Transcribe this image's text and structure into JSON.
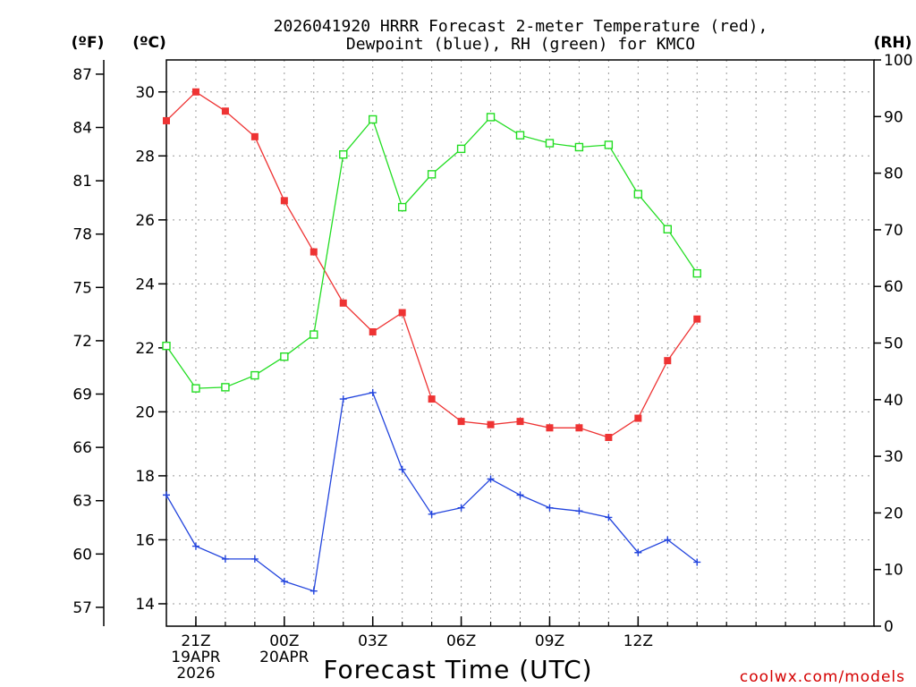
{
  "chart_data": {
    "type": "line",
    "title_line1": "2026041920 HRRR Forecast 2-meter Temperature (red),",
    "title_line2": "Dewpoint (blue), RH (green) for KMCO",
    "xlabel": "Forecast Time (UTC)",
    "credit": "coolwx.com/models",
    "units": {
      "fahrenheit": "(ºF)",
      "celsius": "(ºC)",
      "rh": "(RH)"
    },
    "x_hours_range": [
      20,
      44
    ],
    "celsius_range": [
      13.3,
      31.0
    ],
    "rh_range": [
      0,
      100
    ],
    "celsius_ticks": [
      {
        "value": 14,
        "label": "14"
      },
      {
        "value": 16,
        "label": "16"
      },
      {
        "value": 18,
        "label": "18"
      },
      {
        "value": 20,
        "label": "20"
      },
      {
        "value": 22,
        "label": "22"
      },
      {
        "value": 24,
        "label": "24"
      },
      {
        "value": 26,
        "label": "26"
      },
      {
        "value": 28,
        "label": "28"
      },
      {
        "value": 30,
        "label": "30"
      }
    ],
    "fahrenheit_ticks": [
      {
        "value": 57,
        "label": "57"
      },
      {
        "value": 60,
        "label": "60"
      },
      {
        "value": 63,
        "label": "63"
      },
      {
        "value": 66,
        "label": "66"
      },
      {
        "value": 69,
        "label": "69"
      },
      {
        "value": 72,
        "label": "72"
      },
      {
        "value": 75,
        "label": "75"
      },
      {
        "value": 78,
        "label": "78"
      },
      {
        "value": 81,
        "label": "81"
      },
      {
        "value": 84,
        "label": "84"
      },
      {
        "value": 87,
        "label": "87"
      }
    ],
    "rh_ticks": [
      {
        "value": 0,
        "label": "0"
      },
      {
        "value": 10,
        "label": "10"
      },
      {
        "value": 20,
        "label": "20"
      },
      {
        "value": 30,
        "label": "30"
      },
      {
        "value": 40,
        "label": "40"
      },
      {
        "value": 50,
        "label": "50"
      },
      {
        "value": 60,
        "label": "60"
      },
      {
        "value": 70,
        "label": "70"
      },
      {
        "value": 80,
        "label": "80"
      },
      {
        "value": 90,
        "label": "90"
      },
      {
        "value": 100,
        "label": "100"
      }
    ],
    "x_ticks": [
      {
        "hour": 21,
        "lines": [
          "21Z",
          "19APR",
          "2026"
        ]
      },
      {
        "hour": 24,
        "lines": [
          "00Z",
          "20APR"
        ]
      },
      {
        "hour": 27,
        "lines": [
          "03Z"
        ]
      },
      {
        "hour": 30,
        "lines": [
          "06Z"
        ]
      },
      {
        "hour": 33,
        "lines": [
          "09Z"
        ]
      },
      {
        "hour": 36,
        "lines": [
          "12Z"
        ]
      }
    ],
    "x": [
      20,
      21,
      22,
      23,
      24,
      25,
      26,
      27,
      28,
      29,
      30,
      31,
      32,
      33,
      34,
      35,
      36,
      37,
      38
    ],
    "series": [
      {
        "name": "Temperature",
        "color": "#ee3333",
        "marker": "filled-square",
        "axis": "celsius",
        "values": [
          29.1,
          30.0,
          29.4,
          28.6,
          26.6,
          25.0,
          23.4,
          22.5,
          23.1,
          20.4,
          19.7,
          19.6,
          19.7,
          19.5,
          19.5,
          19.2,
          19.8,
          21.6,
          22.9
        ]
      },
      {
        "name": "Dewpoint",
        "color": "#2244dd",
        "marker": "plus",
        "axis": "celsius",
        "values": [
          17.4,
          15.8,
          15.4,
          15.4,
          14.7,
          14.4,
          20.4,
          20.6,
          18.2,
          16.8,
          17.0,
          17.9,
          17.4,
          17.0,
          16.9,
          16.7,
          15.6,
          16.0,
          15.3
        ]
      },
      {
        "name": "RH",
        "color": "#22dd22",
        "marker": "open-square",
        "axis": "rh",
        "values": [
          49.5,
          42.0,
          42.2,
          44.3,
          47.6,
          51.5,
          83.3,
          89.5,
          74.0,
          79.8,
          84.3,
          89.9,
          86.7,
          85.3,
          84.6,
          85.0,
          76.3,
          70.1,
          62.3
        ]
      }
    ]
  }
}
